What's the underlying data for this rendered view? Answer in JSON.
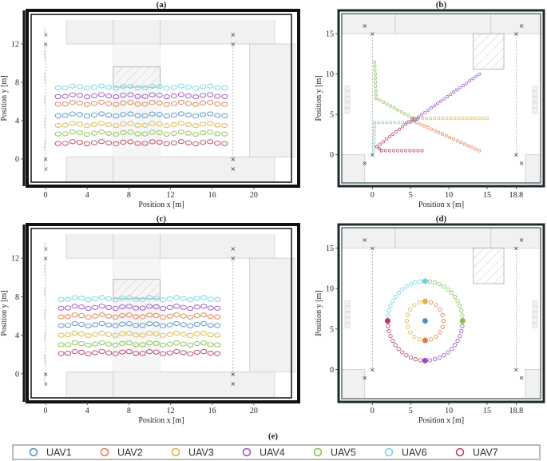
{
  "chart_data": [
    {
      "panel": "(a)",
      "type": "scatter",
      "xlabel": "Position x [m]",
      "ylabel": "Position y [m]",
      "xlim": [
        -1,
        24
      ],
      "ylim": [
        -2.5,
        14.5
      ],
      "xticks": [
        "0",
        "4",
        "8",
        "12",
        "16",
        "20"
      ],
      "xtick_values": [
        0,
        4,
        8,
        12,
        16,
        20
      ],
      "yticks": [
        "0",
        "4",
        "8",
        "12"
      ],
      "ytick_values": [
        0,
        4,
        8,
        12
      ],
      "series": [
        {
          "name": "UAV1",
          "rows": [
            {
              "y": 4.6,
              "x0": 1.2,
              "x1": 17.2
            }
          ]
        },
        {
          "name": "UAV2",
          "rows": [
            {
              "y": 5.8,
              "x0": 1.2,
              "x1": 17.2
            }
          ]
        },
        {
          "name": "UAV3",
          "rows": [
            {
              "y": 3.6,
              "x0": 1.2,
              "x1": 17.2
            }
          ]
        },
        {
          "name": "UAV4",
          "rows": [
            {
              "y": 6.6,
              "x0": 1.2,
              "x1": 17.2
            }
          ]
        },
        {
          "name": "UAV5",
          "rows": [
            {
              "y": 2.7,
              "x0": 1.2,
              "x1": 17.2
            }
          ]
        },
        {
          "name": "UAV6",
          "rows": [
            {
              "y": 7.5,
              "x0": 1.2,
              "x1": 17.2
            }
          ]
        },
        {
          "name": "UAV7",
          "rows": [
            {
              "y": 1.7,
              "x0": 1.2,
              "x1": 17.2
            }
          ]
        }
      ]
    },
    {
      "panel": "(b)",
      "type": "scatter",
      "xlabel": "Position x [m]",
      "ylabel": "Position y [m]",
      "xlim": [
        -4,
        22
      ],
      "ylim": [
        -3.5,
        17.5
      ],
      "xticks": [
        "0",
        "5",
        "10",
        "15",
        "18.8"
      ],
      "xtick_values": [
        0,
        5,
        10,
        15,
        18.8
      ],
      "yticks": [
        "0",
        "5",
        "10",
        "15"
      ],
      "ytick_values": [
        0,
        5,
        10,
        15
      ],
      "series": [
        {
          "name": "UAV1",
          "path": [
            [
              5.0,
              4.0
            ],
            [
              5.8,
              4.4
            ]
          ]
        },
        {
          "name": "UAV2",
          "path": [
            [
              5.3,
              4.2
            ],
            [
              14.0,
              0.5
            ]
          ]
        },
        {
          "name": "UAV3",
          "path": [
            [
              5.5,
              4.5
            ],
            [
              15.0,
              4.5
            ]
          ]
        },
        {
          "name": "UAV4",
          "path": [
            [
              5.6,
              4.4
            ],
            [
              14.0,
              10.0
            ]
          ]
        },
        {
          "name": "UAV5",
          "path": [
            [
              0.3,
              11.5
            ],
            [
              0.5,
              7.0
            ],
            [
              5.2,
              4.6
            ]
          ]
        },
        {
          "name": "UAV6",
          "path": [
            [
              0.2,
              0.5
            ],
            [
              0.3,
              4.0
            ],
            [
              5.0,
              4.0
            ]
          ]
        },
        {
          "name": "UAV7",
          "path": [
            [
              6.5,
              0.5
            ],
            [
              1.2,
              0.5
            ],
            [
              0.6,
              1.0
            ],
            [
              5.2,
              4.4
            ]
          ]
        }
      ]
    },
    {
      "panel": "(c)",
      "type": "scatter",
      "xlabel": "Position x [m]",
      "ylabel": "Position y [m]",
      "xlim": [
        -1,
        24
      ],
      "ylim": [
        -2.5,
        14.5
      ],
      "xticks": [
        "0",
        "4",
        "8",
        "12",
        "16",
        "20"
      ],
      "xtick_values": [
        0,
        4,
        8,
        12,
        16,
        20
      ],
      "yticks": [
        "0",
        "4",
        "8",
        "12"
      ],
      "ytick_values": [
        0,
        4,
        8,
        12
      ],
      "series": [
        {
          "name": "UAV1",
          "rows": [
            {
              "y": 5.1,
              "x0": 1.5,
              "x1": 16.5
            }
          ]
        },
        {
          "name": "UAV2",
          "rows": [
            {
              "y": 6.0,
              "x0": 1.5,
              "x1": 16.5
            }
          ]
        },
        {
          "name": "UAV3",
          "rows": [
            {
              "y": 4.1,
              "x0": 1.5,
              "x1": 16.5
            }
          ]
        },
        {
          "name": "UAV4",
          "rows": [
            {
              "y": 6.9,
              "x0": 1.5,
              "x1": 16.5
            }
          ]
        },
        {
          "name": "UAV5",
          "rows": [
            {
              "y": 3.1,
              "x0": 1.5,
              "x1": 16.5
            }
          ]
        },
        {
          "name": "UAV6",
          "rows": [
            {
              "y": 7.8,
              "x0": 1.5,
              "x1": 16.5
            }
          ]
        },
        {
          "name": "UAV7",
          "rows": [
            {
              "y": 2.2,
              "x0": 1.5,
              "x1": 16.5
            }
          ]
        }
      ]
    },
    {
      "panel": "(d)",
      "type": "scatter",
      "xlabel": "Position x [m]",
      "ylabel": "Position y [m]",
      "xlim": [
        -4,
        22
      ],
      "ylim": [
        -3.5,
        17.5
      ],
      "xticks": [
        "0",
        "5",
        "10",
        "15",
        "18.8"
      ],
      "xtick_values": [
        0,
        5,
        10,
        15,
        18.8
      ],
      "yticks": [
        "0",
        "5",
        "10",
        "15"
      ],
      "ytick_values": [
        0,
        5,
        10,
        15
      ],
      "series": [
        {
          "name": "UAV1",
          "circle": {
            "cx": 6.9,
            "cy": 6.0,
            "r": 0.0
          }
        },
        {
          "name": "UAV2",
          "circle": {
            "cx": 6.9,
            "cy": 6.0,
            "r": 2.4,
            "start_deg": -90
          }
        },
        {
          "name": "UAV3",
          "circle": {
            "cx": 6.9,
            "cy": 6.0,
            "r": 2.4,
            "start_deg": 90
          }
        },
        {
          "name": "UAV4",
          "circle": {
            "cx": 6.9,
            "cy": 6.0,
            "r": 4.9,
            "start_deg": -90
          }
        },
        {
          "name": "UAV5",
          "circle": {
            "cx": 6.9,
            "cy": 6.0,
            "r": 4.9,
            "start_deg": 0
          }
        },
        {
          "name": "UAV6",
          "circle": {
            "cx": 6.9,
            "cy": 6.0,
            "r": 4.9,
            "start_deg": 90
          }
        },
        {
          "name": "UAV7",
          "circle": {
            "cx": 6.9,
            "cy": 6.0,
            "r": 4.9,
            "start_deg": 180
          }
        }
      ]
    }
  ],
  "legend": {
    "label": "(e)",
    "entries": [
      {
        "name": "UAV1",
        "color": "#4a90c8"
      },
      {
        "name": "UAV2",
        "color": "#e0784a"
      },
      {
        "name": "UAV3",
        "color": "#d8b43c"
      },
      {
        "name": "UAV4",
        "color": "#9a4cc0"
      },
      {
        "name": "UAV5",
        "color": "#86c048"
      },
      {
        "name": "UAV6",
        "color": "#6cd0e8"
      },
      {
        "name": "UAV7",
        "color": "#b83c5c"
      }
    ]
  }
}
